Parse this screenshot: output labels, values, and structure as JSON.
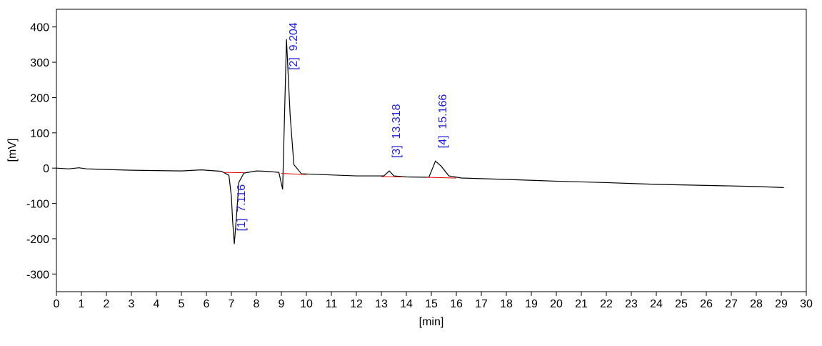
{
  "chart_data": {
    "type": "line",
    "xlabel": "[min]",
    "ylabel": "[mV]",
    "xlim": [
      0,
      30
    ],
    "ylim": [
      -350,
      450
    ],
    "xticks": [
      0,
      1,
      2,
      3,
      4,
      5,
      6,
      7,
      8,
      9,
      10,
      11,
      12,
      13,
      14,
      15,
      16,
      17,
      18,
      19,
      20,
      21,
      22,
      23,
      24,
      25,
      26,
      27,
      28,
      29,
      30
    ],
    "yticks": [
      -300,
      -200,
      -100,
      0,
      100,
      200,
      300,
      400
    ],
    "color": "#000000",
    "x": [
      0,
      0.5,
      0.9,
      1.2,
      2,
      3,
      4,
      5,
      5.8,
      6.2,
      6.6,
      6.9,
      7.0,
      7.05,
      7.116,
      7.2,
      7.3,
      7.5,
      8,
      8.4,
      8.9,
      9.05,
      9.204,
      9.35,
      9.5,
      9.8,
      10.5,
      12,
      13.1,
      13.318,
      13.5,
      14,
      14.9,
      15.05,
      15.166,
      15.4,
      15.7,
      16.2,
      18,
      20,
      22,
      24,
      26,
      28,
      29.1
    ],
    "values": [
      0,
      -2,
      1,
      -2,
      -4,
      -6,
      -7,
      -8,
      -5,
      -7,
      -9,
      -20,
      -80,
      -150,
      -215,
      -140,
      -40,
      -14,
      -8,
      -9,
      -12,
      -60,
      365,
      150,
      10,
      -16,
      -18,
      -22,
      -22,
      -8,
      -22,
      -25,
      -26,
      0,
      20,
      5,
      -22,
      -28,
      -32,
      -37,
      -41,
      -46,
      -49,
      -52,
      -55
    ],
    "baseline_color": "#e00000",
    "baselines": [
      {
        "x": [
          6.7,
          7.5
        ],
        "y": [
          -12,
          -13
        ]
      },
      {
        "x": [
          9.0,
          10.0
        ],
        "y": [
          -15,
          -18
        ]
      },
      {
        "x": [
          13.0,
          13.8
        ],
        "y": [
          -24,
          -25
        ]
      },
      {
        "x": [
          14.8,
          16.0
        ],
        "y": [
          -26,
          -28
        ]
      }
    ],
    "label_color": "#2020d0",
    "peaks": [
      {
        "label": "[1]  7.116",
        "x": 7.116
      },
      {
        "label": "[2]  9.204",
        "x": 9.204
      },
      {
        "label": "[3]  13.318",
        "x": 13.318
      },
      {
        "label": "[4]  15.166",
        "x": 15.166
      }
    ]
  }
}
